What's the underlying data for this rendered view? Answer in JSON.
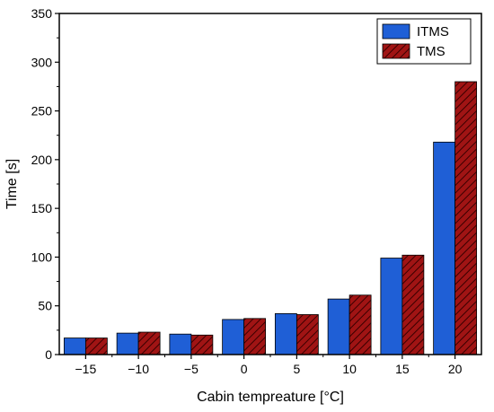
{
  "chart_data": {
    "type": "bar",
    "title": "",
    "xlabel": "Cabin tempreature [°C]",
    "ylabel": "Time [s]",
    "categories": [
      "-15",
      "-10",
      "-5",
      "0",
      "5",
      "10",
      "15",
      "20"
    ],
    "ylim": [
      0,
      350
    ],
    "yticks": [
      0,
      50,
      100,
      150,
      200,
      250,
      300,
      350
    ],
    "grid": false,
    "legend_position": "top-right",
    "series": [
      {
        "name": "ITMS",
        "color": "#1f5fd6",
        "pattern": "solid",
        "values": [
          17,
          22,
          21,
          36,
          42,
          57,
          99,
          218
        ]
      },
      {
        "name": "TMS",
        "color": "#a01414",
        "pattern": "hatched",
        "values": [
          17,
          23,
          20,
          37,
          41,
          61,
          102,
          280
        ]
      }
    ]
  }
}
